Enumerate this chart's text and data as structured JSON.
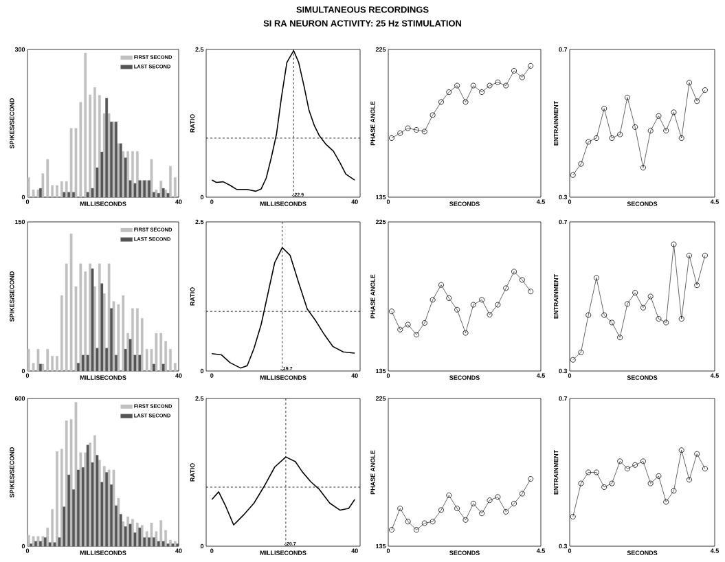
{
  "chart_data": [
    {
      "type": "other",
      "title": "SIMULTANEOUS RECORDINGS",
      "subtitle": "SI RA NEURON ACTIVITY: 25 Hz STIMULATION"
    },
    {
      "type": "histogram",
      "xlabel": "MILLISECONDS",
      "ylabel": "SPIKES/SECOND",
      "xlim": [
        0,
        40
      ],
      "xticks": [
        0,
        40
      ],
      "ylim": [
        0,
        300
      ],
      "yticks": [
        0,
        300
      ],
      "legend": "top right",
      "bins": [
        0,
        1.25,
        2.5,
        3.75,
        5,
        6.25,
        7.5,
        8.75,
        10,
        11.25,
        12.5,
        13.75,
        15,
        16.25,
        17.5,
        18.75,
        20,
        21.25,
        22.5,
        23.75,
        25,
        26.25,
        27.5,
        28.75,
        30,
        31.25,
        32.5,
        33.75,
        35,
        36.25,
        37.5,
        38.75,
        40
      ],
      "series": [
        {
          "name": "FIRST SECOND",
          "color": "#c0c0c0",
          "values": [
            40,
            15,
            15,
            48,
            77,
            24,
            24,
            32,
            32,
            140,
            140,
            193,
            293,
            208,
            223,
            207,
            170,
            170,
            153,
            109,
            93,
            93,
            93,
            93,
            34,
            34,
            77,
            15,
            33,
            15,
            63,
            40
          ]
        },
        {
          "name": "LAST SECOND",
          "color": "#555555",
          "values": [
            0,
            0,
            18,
            0,
            0,
            0,
            0,
            10,
            10,
            10,
            0,
            0,
            10,
            18,
            60,
            92,
            201,
            153,
            153,
            109,
            80,
            34,
            28,
            34,
            34,
            34,
            10,
            8,
            18,
            8,
            0,
            0
          ]
        }
      ]
    },
    {
      "type": "line",
      "xlabel": "MILLISECONDS",
      "ylabel": "RATIO",
      "xlim": [
        -1.6,
        41.5
      ],
      "xticks": [
        0,
        40
      ],
      "ylim": [
        0,
        2.5
      ],
      "yticks": [
        0,
        2.5
      ],
      "x": [
        0,
        1.25,
        3.2,
        5.1,
        7.0,
        9.9,
        12.3,
        13.8,
        15.2,
        16.6,
        18.1,
        19.5,
        21.0,
        22.9,
        24.3,
        25.8,
        27.2,
        28.7,
        30.1,
        32.0,
        34.0,
        35.9,
        37.5,
        40
      ],
      "series": [
        {
          "color": "#000000",
          "values": [
            0.29,
            0.25,
            0.26,
            0.2,
            0.13,
            0.13,
            0.1,
            0.14,
            0.32,
            0.66,
            1.07,
            1.7,
            2.28,
            2.48,
            2.28,
            1.88,
            1.47,
            1.21,
            1.04,
            0.89,
            0.78,
            0.58,
            0.39,
            0.29
          ]
        }
      ],
      "ref_lines": [
        {
          "axis": "y",
          "value": 1,
          "line_style": "dashed"
        },
        {
          "axis": "x",
          "value": 22.9,
          "label": "22.9",
          "line_style": "dashed"
        }
      ]
    },
    {
      "type": "line",
      "xlabel": "SECONDS",
      "ylabel": "PHASE  ANGLE",
      "xlim": [
        0,
        4.5
      ],
      "xticks": [
        0,
        4.5
      ],
      "ylim": [
        135,
        225
      ],
      "yticks": [
        135,
        225
      ],
      "marker": "circle",
      "x": [
        0.1,
        0.35,
        0.58,
        0.83,
        1.07,
        1.31,
        1.56,
        1.79,
        2.03,
        2.28,
        2.51,
        2.76,
        2.99,
        3.23,
        3.47,
        3.71,
        3.95,
        4.2
      ],
      "series": [
        {
          "color": "#000000",
          "values": [
            171,
            174,
            177,
            176,
            175,
            185,
            193,
            199,
            203,
            193,
            203,
            199,
            203,
            205,
            203,
            212,
            208,
            215
          ]
        }
      ]
    },
    {
      "type": "line",
      "xlabel": "SECONDS",
      "ylabel": "ENTRAINMENT",
      "xlim": [
        0,
        4.5
      ],
      "xticks": [
        0,
        4.5
      ],
      "ylim": [
        0.3,
        0.7
      ],
      "yticks": [
        0.3,
        0.7
      ],
      "marker": "circle",
      "x": [
        0.1,
        0.35,
        0.58,
        0.83,
        1.07,
        1.31,
        1.56,
        1.79,
        2.03,
        2.28,
        2.51,
        2.76,
        2.99,
        3.23,
        3.47,
        3.71,
        3.95,
        4.2
      ],
      "series": [
        {
          "color": "#000000",
          "values": [
            0.36,
            0.39,
            0.45,
            0.46,
            0.54,
            0.46,
            0.47,
            0.57,
            0.49,
            0.38,
            0.48,
            0.52,
            0.48,
            0.53,
            0.46,
            0.61,
            0.56,
            0.59
          ]
        }
      ]
    },
    {
      "type": "histogram",
      "xlabel": "MILLISECONDS",
      "ylabel": "SPIKES/SECOND",
      "xlim": [
        0,
        40
      ],
      "xticks": [
        0,
        40
      ],
      "ylim": [
        0,
        150
      ],
      "yticks": [
        0,
        150
      ],
      "legend": "top right",
      "bins": [
        0,
        1.25,
        2.5,
        3.75,
        5,
        6.25,
        7.5,
        8.75,
        10,
        11.25,
        12.5,
        13.75,
        15,
        16.25,
        17.5,
        18.75,
        20,
        21.25,
        22.5,
        23.75,
        25,
        26.25,
        27.5,
        28.75,
        30,
        31.25,
        32.5,
        33.75,
        35,
        36.25,
        37.5,
        38.75,
        40
      ],
      "series": [
        {
          "name": "FIRST SECOND",
          "color": "#c0c0c0",
          "values": [
            22,
            8,
            22,
            7,
            22,
            15,
            15,
            76,
            108,
            138,
            85,
            108,
            100,
            108,
            85,
            108,
            78,
            108,
            70,
            67,
            76,
            38,
            63,
            63,
            53,
            22,
            22,
            38,
            38,
            30,
            22,
            8
          ]
        },
        {
          "name": "LAST SECOND",
          "color": "#555555",
          "values": [
            0,
            0,
            7,
            0,
            0,
            0,
            0,
            0,
            0,
            0,
            8,
            16,
            16,
            103,
            23,
            88,
            23,
            63,
            16,
            0,
            22,
            32,
            16,
            16,
            0,
            0,
            7,
            0,
            7,
            0,
            0,
            0
          ]
        }
      ]
    },
    {
      "type": "line",
      "xlabel": "MILLISECONDS",
      "ylabel": "RATIO",
      "xlim": [
        -1.6,
        41.5
      ],
      "xticks": [
        0,
        40
      ],
      "ylim": [
        0,
        2.5
      ],
      "yticks": [
        0,
        2.5
      ],
      "x": [
        0,
        2.7,
        5.1,
        8.0,
        9.9,
        11.8,
        13.8,
        15.7,
        17.6,
        19.7,
        21.9,
        24.3,
        26.7,
        29.1,
        31.5,
        33.9,
        36.8,
        40
      ],
      "series": [
        {
          "color": "#000000",
          "values": [
            0.29,
            0.27,
            0.14,
            0.05,
            0.09,
            0.38,
            0.78,
            1.3,
            1.82,
            2.07,
            1.94,
            1.48,
            1.04,
            0.84,
            0.61,
            0.41,
            0.32,
            0.3
          ]
        }
      ],
      "ref_lines": [
        {
          "axis": "y",
          "value": 1,
          "line_style": "dashed"
        },
        {
          "axis": "x",
          "value": 19.7,
          "label": "19.7",
          "line_style": "dashed"
        }
      ]
    },
    {
      "type": "line",
      "xlabel": "SECONDS",
      "ylabel": "PHASE  ANGLE",
      "xlim": [
        0,
        4.5
      ],
      "xticks": [
        0,
        4.5
      ],
      "ylim": [
        135,
        225
      ],
      "yticks": [
        135,
        225
      ],
      "marker": "circle",
      "x": [
        0.1,
        0.35,
        0.58,
        0.83,
        1.07,
        1.31,
        1.56,
        1.79,
        2.03,
        2.28,
        2.51,
        2.76,
        2.99,
        3.23,
        3.47,
        3.71,
        3.95,
        4.2
      ],
      "series": [
        {
          "color": "#000000",
          "values": [
            171,
            160,
            163,
            157,
            164,
            178,
            187,
            179,
            172,
            158,
            175,
            178,
            169,
            175,
            185,
            195,
            190,
            183
          ]
        }
      ]
    },
    {
      "type": "line",
      "xlabel": "SECONDS",
      "ylabel": "ENTRAINMENT",
      "xlim": [
        0,
        4.5
      ],
      "xticks": [
        0,
        4.5
      ],
      "ylim": [
        0.3,
        0.7
      ],
      "yticks": [
        0.3,
        0.7
      ],
      "marker": "circle",
      "x": [
        0.1,
        0.35,
        0.58,
        0.83,
        1.07,
        1.31,
        1.56,
        1.79,
        2.03,
        2.28,
        2.51,
        2.76,
        2.99,
        3.23,
        3.47,
        3.71,
        3.95,
        4.2
      ],
      "series": [
        {
          "color": "#000000",
          "values": [
            0.33,
            0.35,
            0.45,
            0.55,
            0.45,
            0.43,
            0.39,
            0.48,
            0.51,
            0.47,
            0.5,
            0.44,
            0.43,
            0.64,
            0.44,
            0.61,
            0.53,
            0.61
          ]
        }
      ]
    },
    {
      "type": "histogram",
      "xlabel": "MILLISECONDS",
      "ylabel": "SPIKES/SECOND",
      "xlim": [
        0,
        40
      ],
      "xticks": [
        0,
        40
      ],
      "ylim": [
        0,
        600
      ],
      "yticks": [
        0,
        600
      ],
      "legend": "top right",
      "bins": [
        0,
        1.25,
        2.5,
        3.75,
        5,
        6.25,
        7.5,
        8.75,
        10,
        11.25,
        12.5,
        13.75,
        15,
        16.25,
        17.5,
        18.75,
        20,
        21.25,
        22.5,
        23.75,
        25,
        26.25,
        27.5,
        28.75,
        30,
        31.25,
        32.5,
        33.75,
        35,
        36.25,
        37.5,
        38.75,
        40
      ],
      "series": [
        {
          "name": "FIRST SECOND",
          "color": "#c0c0c0",
          "values": [
            45,
            40,
            40,
            40,
            75,
            150,
            385,
            395,
            510,
            515,
            585,
            380,
            380,
            420,
            450,
            350,
            325,
            310,
            310,
            195,
            100,
            120,
            110,
            95,
            85,
            60,
            95,
            60,
            105,
            65,
            25,
            20
          ]
        },
        {
          "name": "LAST SECOND",
          "color": "#555555",
          "values": [
            10,
            20,
            20,
            35,
            15,
            15,
            35,
            160,
            290,
            230,
            310,
            320,
            411,
            340,
            370,
            260,
            300,
            250,
            165,
            130,
            80,
            90,
            55,
            75,
            35,
            35,
            35,
            20,
            20,
            10,
            10,
            10
          ]
        }
      ]
    },
    {
      "type": "line",
      "xlabel": "MILLISECONDS",
      "ylabel": "RATIO",
      "xlim": [
        -1.6,
        41.5
      ],
      "xticks": [
        0,
        40
      ],
      "ylim": [
        0,
        2.5
      ],
      "yticks": [
        0,
        2.5
      ],
      "x": [
        0,
        1.9,
        3.7,
        6.1,
        8.9,
        11.8,
        14.7,
        17.6,
        20.7,
        23.4,
        25.3,
        27.7,
        30.1,
        33.0,
        35.9,
        38.3,
        40
      ],
      "series": [
        {
          "color": "#000000",
          "values": [
            0.79,
            0.92,
            0.7,
            0.36,
            0.53,
            0.73,
            1.02,
            1.34,
            1.51,
            1.43,
            1.26,
            1.09,
            0.96,
            0.73,
            0.61,
            0.64,
            0.79
          ]
        }
      ],
      "ref_lines": [
        {
          "axis": "y",
          "value": 1,
          "line_style": "dashed"
        },
        {
          "axis": "x",
          "value": 20.7,
          "label": "20.7",
          "line_style": "dashed"
        }
      ]
    },
    {
      "type": "line",
      "xlabel": "SECONDS",
      "ylabel": "PHASE  ANGLE",
      "xlim": [
        0,
        4.5
      ],
      "xticks": [
        0,
        4.5
      ],
      "ylim": [
        135,
        225
      ],
      "yticks": [
        135,
        225
      ],
      "marker": "circle",
      "x": [
        0.1,
        0.35,
        0.58,
        0.83,
        1.07,
        1.31,
        1.56,
        1.79,
        2.03,
        2.28,
        2.51,
        2.76,
        2.99,
        3.23,
        3.47,
        3.71,
        3.95,
        4.2
      ],
      "series": [
        {
          "color": "#000000",
          "values": [
            145,
            158,
            150,
            145,
            149,
            150,
            157,
            166,
            158,
            151,
            161,
            155,
            163,
            165,
            156,
            161,
            167,
            176
          ]
        }
      ]
    },
    {
      "type": "line",
      "xlabel": "SECONDS",
      "ylabel": "ENTRAINMENT",
      "xlim": [
        0,
        4.5
      ],
      "xticks": [
        0,
        4.5
      ],
      "ylim": [
        0.3,
        0.7
      ],
      "yticks": [
        0.3,
        0.7
      ],
      "marker": "circle",
      "x": [
        0.1,
        0.35,
        0.58,
        0.83,
        1.07,
        1.31,
        1.56,
        1.79,
        2.03,
        2.28,
        2.51,
        2.76,
        2.99,
        3.23,
        3.47,
        3.71,
        3.95,
        4.2
      ],
      "series": [
        {
          "color": "#000000",
          "values": [
            0.38,
            0.47,
            0.5,
            0.5,
            0.46,
            0.47,
            0.53,
            0.51,
            0.52,
            0.53,
            0.47,
            0.49,
            0.42,
            0.45,
            0.56,
            0.48,
            0.55,
            0.51
          ]
        }
      ]
    }
  ]
}
